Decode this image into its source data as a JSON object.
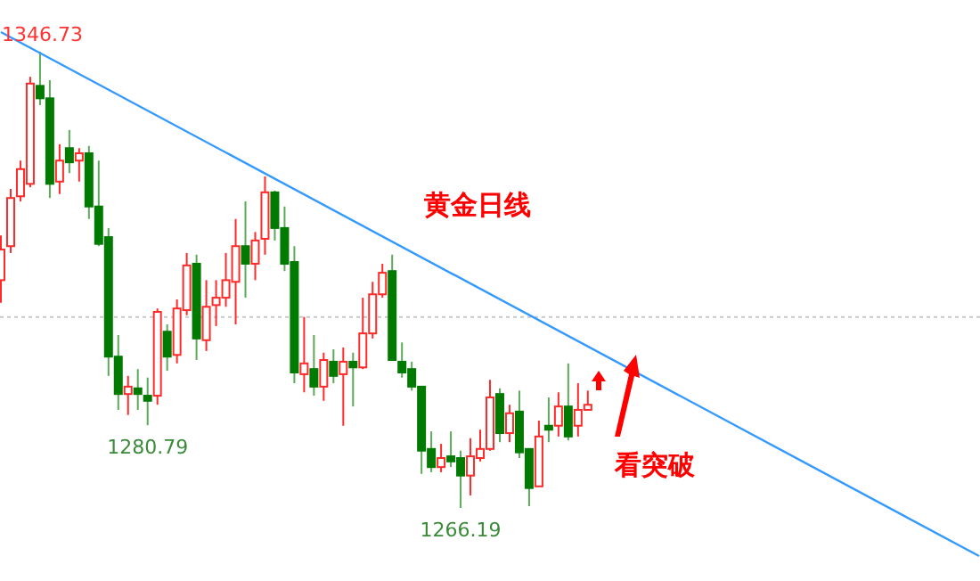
{
  "chart_data": {
    "type": "candlestick",
    "categories": [
      null,
      null,
      null,
      null,
      null,
      null,
      null,
      null,
      null,
      null,
      null,
      null,
      null,
      null,
      null,
      null,
      null,
      null,
      null,
      null,
      null,
      null,
      null,
      null,
      null,
      null,
      null,
      null,
      null,
      null,
      null,
      null,
      null,
      null,
      null,
      null,
      null,
      null,
      null,
      null,
      null,
      null,
      null,
      null,
      null,
      null,
      null,
      null,
      null,
      null,
      null,
      null,
      null,
      null,
      null,
      null,
      null,
      null,
      null,
      null,
      null,
      null,
      null,
      null,
      null,
      null,
      null,
      null,
      null,
      null,
      null,
      null,
      null,
      null,
      null,
      null,
      null,
      null,
      null,
      null,
      null,
      null,
      null,
      null,
      null,
      null,
      null,
      null,
      null,
      null,
      null,
      null,
      null,
      null,
      null,
      null,
      null,
      null,
      null,
      null,
      null
    ],
    "ohlc": [
      [
        1306.4,
        1314.3,
        1302.4,
        1311.8
      ],
      [
        1312.4,
        1322.5,
        1311.2,
        1320.9
      ],
      [
        1321.2,
        1327.5,
        1320.3,
        1326.0
      ],
      [
        1323.4,
        1342.3,
        1322.8,
        1341.1
      ],
      [
        1340.7,
        1346.73,
        1337.3,
        1338.5
      ],
      [
        1338.5,
        1341.7,
        1320.9,
        1323.4
      ],
      [
        1323.8,
        1330.4,
        1321.6,
        1327.5
      ],
      [
        1329.7,
        1332.9,
        1325.3,
        1327.2
      ],
      [
        1327.5,
        1329.7,
        1323.8,
        1328.8
      ],
      [
        1328.8,
        1330.1,
        1317.2,
        1319.4
      ],
      [
        1319.4,
        1327.5,
        1312.4,
        1312.8
      ],
      [
        1314.0,
        1315.6,
        1289.5,
        1292.9
      ],
      [
        1292.9,
        1296.7,
        1283.5,
        1286.3
      ],
      [
        1286.3,
        1289.5,
        1282.6,
        1287.6
      ],
      [
        1287.3,
        1290.7,
        1283.5,
        1286.3
      ],
      [
        1286.0,
        1289.2,
        1280.79,
        1285.1
      ],
      [
        1286.0,
        1301.4,
        1284.4,
        1300.8
      ],
      [
        1297.3,
        1298.6,
        1290.4,
        1292.9
      ],
      [
        1293.2,
        1303.0,
        1291.7,
        1301.4
      ],
      [
        1301.1,
        1311.2,
        1300.2,
        1309.0
      ],
      [
        1309.3,
        1310.9,
        1292.3,
        1296.1
      ],
      [
        1295.8,
        1306.4,
        1293.9,
        1301.7
      ],
      [
        1302.0,
        1306.4,
        1298.3,
        1303.3
      ],
      [
        1303.3,
        1311.2,
        1301.7,
        1306.4
      ],
      [
        1306.1,
        1317.2,
        1298.6,
        1312.4
      ],
      [
        1312.4,
        1320.3,
        1303.3,
        1309.3
      ],
      [
        1309.3,
        1314.9,
        1306.4,
        1313.4
      ],
      [
        1313.7,
        1324.7,
        1310.9,
        1321.9
      ],
      [
        1321.9,
        1322.2,
        1313.4,
        1315.6
      ],
      [
        1315.6,
        1319.4,
        1308.0,
        1309.3
      ],
      [
        1309.6,
        1312.4,
        1288.2,
        1290.1
      ],
      [
        1289.8,
        1299.9,
        1286.6,
        1291.7
      ],
      [
        1290.7,
        1296.7,
        1286.0,
        1287.6
      ],
      [
        1287.6,
        1293.6,
        1285.1,
        1292.3
      ],
      [
        1292.0,
        1294.2,
        1288.2,
        1289.5
      ],
      [
        1289.8,
        1294.5,
        1280.7,
        1292.0
      ],
      [
        1292.0,
        1293.6,
        1284.1,
        1291.0
      ],
      [
        1291.0,
        1303.3,
        1290.7,
        1297.0
      ],
      [
        1297.0,
        1306.1,
        1296.1,
        1303.9
      ],
      [
        1303.9,
        1309.3,
        1303.3,
        1307.7
      ],
      [
        1308.0,
        1310.9,
        1292.3,
        1292.3
      ],
      [
        1292.0,
        1295.4,
        1289.2,
        1290.1
      ],
      [
        1290.7,
        1292.0,
        1286.9,
        1287.6
      ],
      [
        1287.6,
        1287.6,
        1272.2,
        1276.3
      ],
      [
        1276.6,
        1279.7,
        1272.5,
        1273.4
      ],
      [
        1273.4,
        1277.5,
        1272.5,
        1275.0
      ],
      [
        1275.3,
        1279.7,
        1273.4,
        1274.4
      ],
      [
        1275.0,
        1276.3,
        1266.19,
        1271.9
      ],
      [
        1271.9,
        1278.5,
        1268.4,
        1275.3
      ],
      [
        1275.0,
        1280.0,
        1274.4,
        1276.6
      ],
      [
        1276.6,
        1288.8,
        1276.3,
        1285.7
      ],
      [
        1286.3,
        1287.3,
        1277.8,
        1279.4
      ],
      [
        1279.4,
        1284.4,
        1277.8,
        1282.9
      ],
      [
        1283.2,
        1286.9,
        1275.0,
        1276.0
      ],
      [
        1276.6,
        1276.6,
        1266.5,
        1269.7
      ],
      [
        1270.0,
        1281.6,
        1270.0,
        1278.8
      ],
      [
        1280.7,
        1285.7,
        1277.8,
        1280.0
      ],
      [
        1280.7,
        1286.6,
        1278.8,
        1284.1
      ],
      [
        1284.1,
        1291.7,
        1278.1,
        1278.8
      ],
      [
        1280.7,
        1288.2,
        1278.8,
        1283.5
      ],
      [
        1283.5,
        1286.9,
        1283.5,
        1284.4
      ],
      null,
      null,
      null,
      null,
      null,
      null,
      null,
      null,
      null,
      null,
      null,
      null,
      null,
      null,
      null,
      null,
      null,
      null,
      null,
      null,
      null,
      null,
      null,
      null,
      null,
      null,
      null,
      null,
      null,
      null,
      null,
      null,
      null,
      null,
      null,
      null,
      null,
      null,
      null,
      null
    ],
    "series": [
      {
        "type": "line",
        "color": "#3399ff",
        "values": [
          1350.2,
          null,
          null,
          null,
          null,
          null,
          null,
          null,
          null,
          null,
          null,
          null,
          null,
          null,
          null,
          null,
          null,
          null,
          null,
          null,
          null,
          null,
          null,
          null,
          null,
          null,
          null,
          null,
          null,
          null,
          null,
          null,
          null,
          null,
          null,
          null,
          null,
          null,
          null,
          null,
          null,
          null,
          null,
          null,
          null,
          null,
          null,
          null,
          null,
          null,
          null,
          null,
          null,
          null,
          null,
          null,
          null,
          null,
          null,
          null,
          null,
          null,
          null,
          null,
          null,
          null,
          null,
          null,
          null,
          null,
          null,
          null,
          null,
          null,
          null,
          null,
          null,
          null,
          null,
          null,
          null,
          null,
          null,
          null,
          null,
          null,
          null,
          null,
          null,
          null,
          null,
          null,
          null,
          null,
          null,
          null,
          null,
          null,
          null,
          null,
          1257.7
        ]
      }
    ],
    "ref_lines": [
      {
        "axis": "y",
        "value": 1299.9,
        "color": "#c8c8c8",
        "line_style": "dotted"
      }
    ],
    "annotations": [
      {
        "text": "1346.73",
        "y": 1346.73
      },
      {
        "text": "1280.79",
        "y": 1280.79
      },
      {
        "text": "1266.19",
        "y": 1266.19
      },
      "黄金日线",
      "看突破"
    ]
  }
}
